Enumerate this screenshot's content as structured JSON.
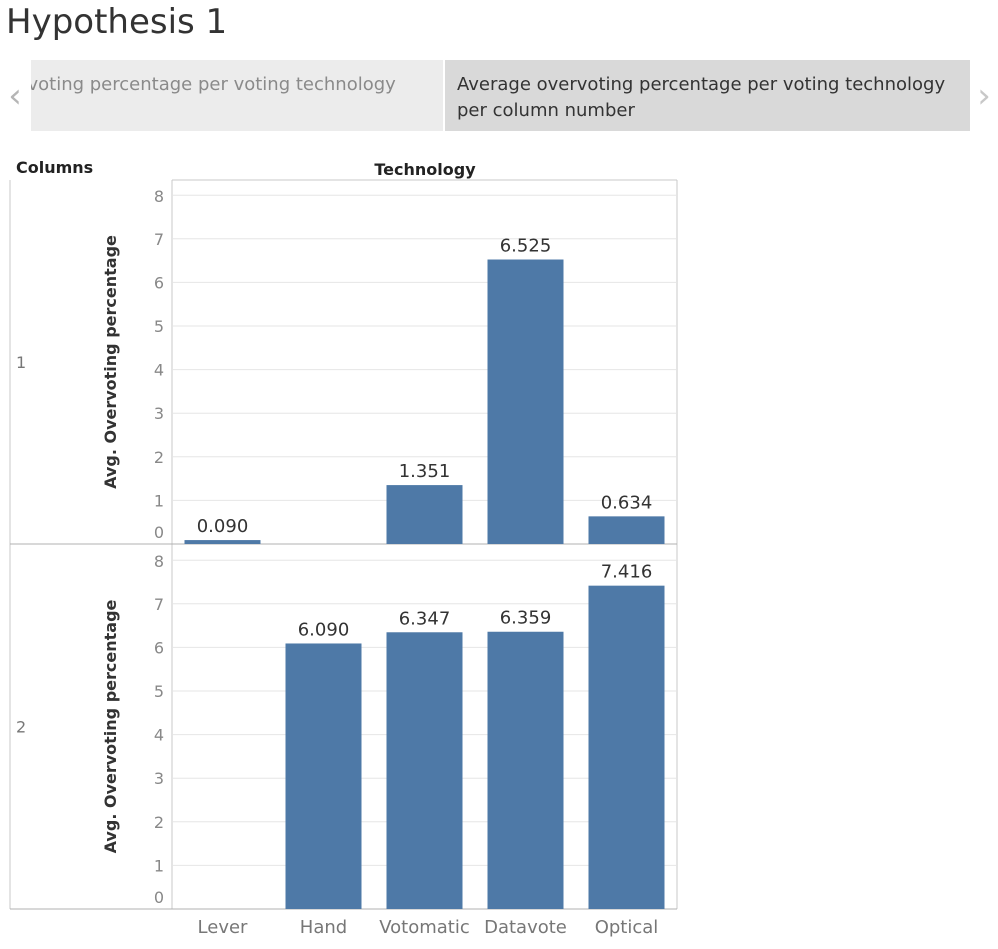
{
  "story": {
    "title": "Hypothesis 1",
    "points": [
      {
        "label": "Average overvoting percentage per voting technology",
        "visible_text": "ervoting percentage per voting technology"
      },
      {
        "label": "Average overvoting percentage per voting technology per column number"
      }
    ]
  },
  "viz": {
    "columns_header": "Columns",
    "technology_header": "Technology",
    "y_axis_title": "Avg. Overvoting percentage"
  },
  "colors": {
    "bar": "#4e79a7",
    "grid": "#e6e6e6",
    "border": "#c8c8c8"
  },
  "icons": {
    "prev": "chevron-left-icon",
    "next": "chevron-right-icon"
  },
  "chart_data": {
    "type": "bar",
    "title": "Average overvoting percentage per voting technology per column number",
    "xlabel": "Technology",
    "ylabel": "Avg. Overvoting percentage",
    "categories": [
      "Lever",
      "Hand",
      "Votomatic",
      "Datavote",
      "Optical"
    ],
    "ylim": [
      0,
      8
    ],
    "yticks": [
      0,
      1,
      2,
      3,
      4,
      5,
      6,
      7,
      8
    ],
    "panels": [
      {
        "row": "1",
        "values": [
          0.09,
          null,
          1.351,
          6.525,
          0.634
        ],
        "labels": [
          "0.090",
          "",
          "1.351",
          "6.525",
          "0.634"
        ]
      },
      {
        "row": "2",
        "values": [
          null,
          6.09,
          6.347,
          6.359,
          7.416
        ],
        "labels": [
          "",
          "6.090",
          "6.347",
          "6.359",
          "7.416"
        ]
      }
    ],
    "grid": true
  }
}
